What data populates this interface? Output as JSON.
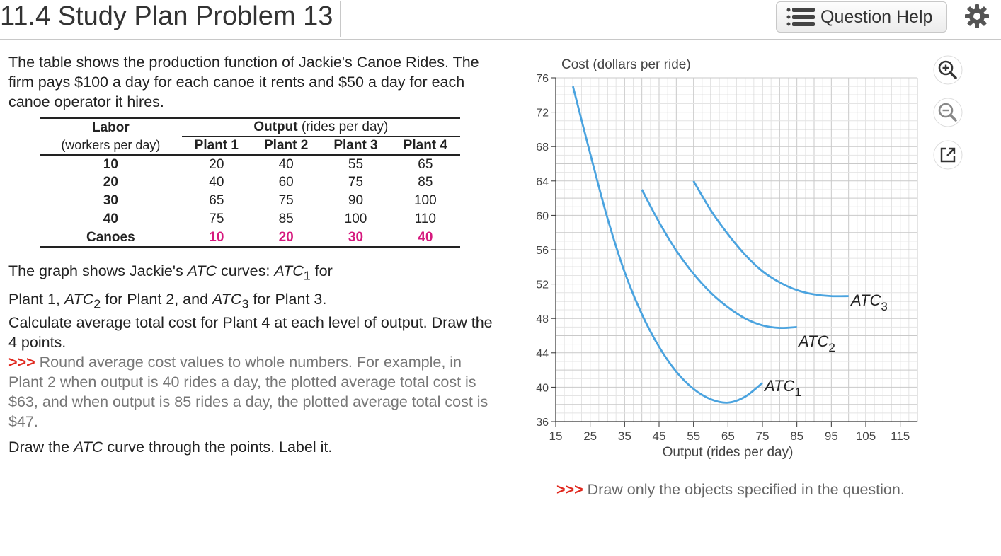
{
  "header": {
    "title": "11.4 Study Plan Problem 13",
    "help_label": "Question Help"
  },
  "problem": {
    "intro": "The table shows the production function of Jackie's Canoe Rides. The firm pays $100 a day for each canoe it rents and $50 a day for each canoe operator it hires.",
    "graph_text_1": "The graph shows Jackie's ",
    "graph_text_atc": "ATC",
    "graph_text_2": " curves: ",
    "graph_text_3": " for",
    "graph_text_4": "Plant 1, ",
    "graph_text_5": " for Plant 2, and ",
    "graph_text_6": " for Plant 3.",
    "task": "Calculate average total cost for Plant 4 at each level of output. Draw the 4 points.",
    "hint_marker": ">>>",
    "hint": "Round average cost values to whole numbers. For example, in Plant 2 when output is 40 rides a day, the plotted average total cost is $63, and when output is 85 rides a day, the plotted average total cost is $47.",
    "draw_text_1": "Draw the ",
    "draw_text_atc": "ATC",
    "draw_text_2": " curve through the points. Label it."
  },
  "table": {
    "labor_header": "Labor",
    "labor_sub": "(workers per day)",
    "output_header_bold": "Output",
    "output_header_rest": " (rides per day)",
    "plants": [
      "Plant 1",
      "Plant 2",
      "Plant 3",
      "Plant 4"
    ],
    "rows": [
      {
        "labor": "10",
        "values": [
          "20",
          "40",
          "55",
          "65"
        ]
      },
      {
        "labor": "20",
        "values": [
          "40",
          "60",
          "75",
          "85"
        ]
      },
      {
        "labor": "30",
        "values": [
          "65",
          "75",
          "90",
          "100"
        ]
      },
      {
        "labor": "40",
        "values": [
          "75",
          "85",
          "100",
          "110"
        ]
      }
    ],
    "canoes_label": "Canoes",
    "canoes": [
      "10",
      "20",
      "30",
      "40"
    ]
  },
  "chart_data": {
    "type": "line",
    "ylabel": "Cost (dollars per ride)",
    "xlabel": "Output (rides per day)",
    "xlim": [
      15,
      120
    ],
    "ylim": [
      36,
      76
    ],
    "x_ticks": [
      15,
      25,
      35,
      45,
      55,
      65,
      75,
      85,
      95,
      105,
      115
    ],
    "y_ticks": [
      36,
      40,
      44,
      48,
      52,
      56,
      60,
      64,
      68,
      72,
      76
    ],
    "grid": true,
    "series": [
      {
        "name": "ATC₁",
        "label_main": "ATC",
        "label_sub": "1",
        "color": "#4aa3df",
        "x": [
          20,
          25,
          30,
          35,
          40,
          45,
          50,
          55,
          60,
          65,
          70,
          75
        ],
        "y": [
          75,
          67.2,
          59.7,
          53.4,
          48.5,
          44.7,
          41.8,
          39.8,
          38.6,
          38.2,
          38.9,
          40.5
        ]
      },
      {
        "name": "ATC₂",
        "label_main": "ATC",
        "label_sub": "2",
        "color": "#4aa3df",
        "x": [
          40,
          45,
          50,
          55,
          60,
          65,
          70,
          75,
          80,
          85
        ],
        "y": [
          63,
          59.2,
          55.9,
          53.2,
          51,
          49.3,
          48,
          47.2,
          46.9,
          47
        ]
      },
      {
        "name": "ATC₃",
        "label_main": "ATC",
        "label_sub": "3",
        "color": "#4aa3df",
        "x": [
          55,
          60,
          65,
          70,
          75,
          80,
          85,
          90,
          95,
          100
        ],
        "y": [
          64,
          60.6,
          57.8,
          55.4,
          53.5,
          52.2,
          51.3,
          50.8,
          50.6,
          50.6
        ]
      }
    ]
  },
  "instruction": {
    "marker": ">>>",
    "text": " Draw only the objects specified in the question."
  },
  "tools": {
    "zoom_in": "zoom-in",
    "zoom_out": "zoom-out",
    "popout": "pop-out"
  }
}
